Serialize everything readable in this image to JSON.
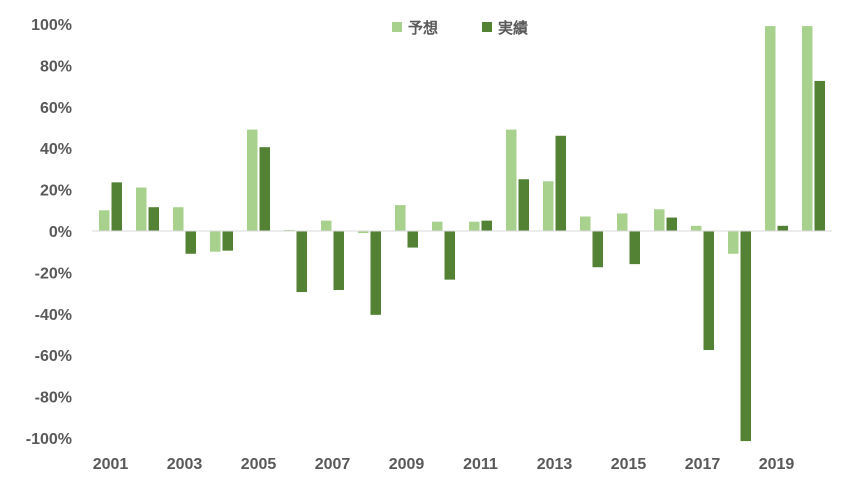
{
  "chart_data": {
    "type": "bar",
    "categories": [
      "2001",
      "2002",
      "2003",
      "2004",
      "2005",
      "2006",
      "2007",
      "2008",
      "2009",
      "2010",
      "2011",
      "2012",
      "2013",
      "2014",
      "2015",
      "2016",
      "2017",
      "2018",
      "2019",
      "2020"
    ],
    "x_tick_labels": [
      "2001",
      "2003",
      "2005",
      "2007",
      "2009",
      "2011",
      "2013",
      "2015",
      "2017",
      "2019"
    ],
    "series": [
      {
        "name": "予想",
        "color": "#a9d18e",
        "values": [
          10,
          21,
          11.5,
          -10,
          49,
          0.5,
          5,
          -1,
          12.5,
          4.5,
          4.5,
          49,
          24,
          7,
          8.5,
          10.5,
          2.5,
          -11,
          99,
          99
        ]
      },
      {
        "name": "実績",
        "color": "#548235",
        "values": [
          23.5,
          11.5,
          -11,
          -9.5,
          40.5,
          -29.5,
          -28.5,
          -40.5,
          -8,
          -23.5,
          5,
          25,
          46,
          -17.5,
          -16,
          6.5,
          -57.5,
          -101.5,
          2.5,
          72.5
        ]
      }
    ],
    "y_tick_labels": [
      "100%",
      "80%",
      "60%",
      "40%",
      "20%",
      "0%",
      "-20%",
      "-40%",
      "-60%",
      "-80%",
      "-100%"
    ],
    "ylim": [
      -100,
      100
    ],
    "grid": false,
    "legend_position": "top-center"
  }
}
